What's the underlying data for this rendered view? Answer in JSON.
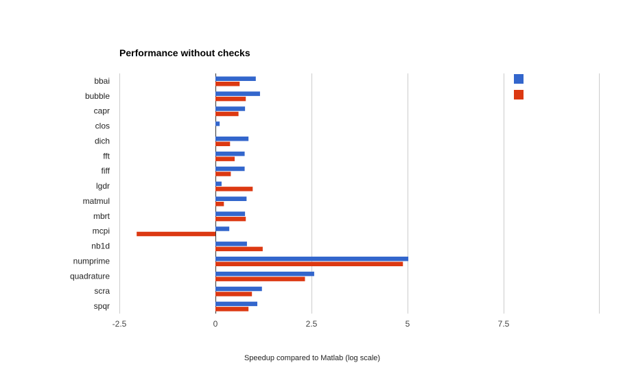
{
  "chart_data": {
    "type": "bar",
    "orientation": "horizontal",
    "title": "Performance without checks",
    "xlabel": "Speedup compared to Matlab (log scale)",
    "ylabel": "",
    "xlim": [
      -2.5,
      10
    ],
    "xticks": [
      "-2.5",
      "0",
      "2.5",
      "5",
      "7.5"
    ],
    "xtick_values": [
      -2.5,
      0,
      2.5,
      5,
      7.5
    ],
    "grid": true,
    "legend_position": "top-right",
    "categories": [
      "bbai",
      "bubble",
      "capr",
      "clos",
      "dich",
      "fft",
      "fiff",
      "lgdr",
      "matmul",
      "mbrt",
      "mcpi",
      "nb1d",
      "numprime",
      "quadrature",
      "scra",
      "spqr"
    ],
    "series": [
      {
        "color": "#3366cc",
        "values": [
          1.05,
          1.16,
          0.77,
          0.11,
          0.86,
          0.76,
          0.76,
          0.16,
          0.81,
          0.77,
          0.36,
          0.82,
          5.02,
          2.57,
          1.21,
          1.09
        ]
      },
      {
        "color": "#dc3912",
        "values": [
          0.63,
          0.79,
          0.6,
          0.0,
          0.38,
          0.5,
          0.4,
          0.97,
          0.22,
          0.79,
          -2.05,
          1.23,
          4.88,
          2.33,
          0.95,
          0.86
        ]
      }
    ]
  }
}
